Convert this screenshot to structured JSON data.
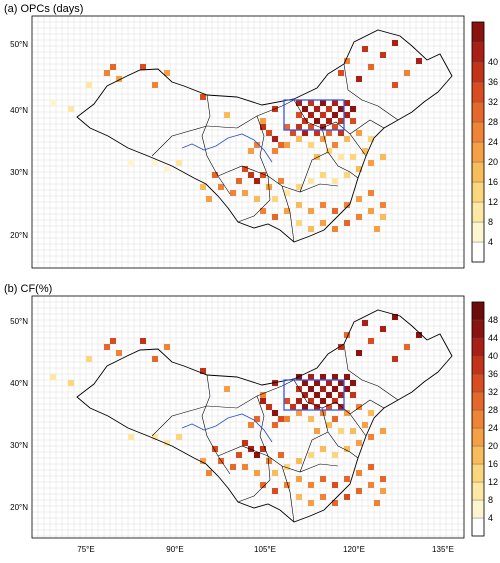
{
  "panels": [
    {
      "id": "a",
      "title": "(a) OPCs (days)",
      "colorbar": {
        "ticks": [
          "4",
          "8",
          "12",
          "16",
          "20",
          "24",
          "28",
          "32",
          "36",
          "40"
        ],
        "colors": [
          "#ffffff",
          "#fdf5cf",
          "#fce8a3",
          "#fbd67c",
          "#f9bc5a",
          "#f6a045",
          "#f08436",
          "#e6672a",
          "#d84c1f",
          "#c23318",
          "#a91f15",
          "#8a1310"
        ]
      },
      "ylabels": [
        "50°N",
        "40°N",
        "30°N",
        "20°N"
      ],
      "xlabels": []
    },
    {
      "id": "b",
      "title": "(b) CF(%)",
      "colorbar": {
        "ticks": [
          "4",
          "8",
          "12",
          "16",
          "20",
          "24",
          "28",
          "32",
          "36",
          "40",
          "44",
          "48"
        ],
        "colors": [
          "#ffffff",
          "#fdf5cf",
          "#fce8a3",
          "#fbd67c",
          "#f9bc5a",
          "#f6a045",
          "#f08436",
          "#e6672a",
          "#d84c1f",
          "#c23318",
          "#a91f15",
          "#8a1310",
          "#6e0c0c"
        ]
      },
      "ylabels": [
        "50°N",
        "40°N",
        "30°N",
        "20°N"
      ],
      "xlabels": [
        "75°E",
        "90°E",
        "105°E",
        "120°E",
        "135°E"
      ]
    }
  ]
}
